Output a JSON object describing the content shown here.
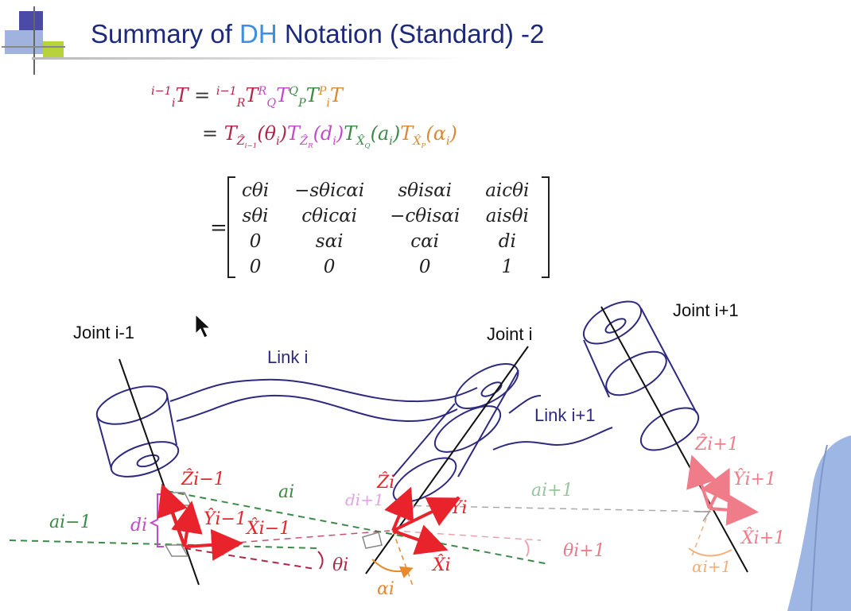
{
  "title": {
    "prefix": "Summary of ",
    "dh": "DH",
    "suffix": " Notation (Standard) -2"
  },
  "colors": {
    "title": "#1d2a7a",
    "dh": "#3f8fe0",
    "red": "#b1274a",
    "magenta": "#c34bc9",
    "green": "#3c8a48",
    "orange": "#d98a34",
    "frame": "#e8232b"
  },
  "equation": {
    "lhs": "i−1iT",
    "line1": "= i−1RT RQT QPT PiT",
    "line2": "= TẐi−1(θi)TẐR(di)TX̂Q(ai)TX̂P(αi)"
  },
  "matrix": {
    "rows": [
      [
        "cθi",
        "−sθicαi",
        "sθisαi",
        "aicθi"
      ],
      [
        "sθi",
        "cθicαi",
        "−cθisαi",
        "aisθi"
      ],
      [
        "0",
        "sαi",
        "cαi",
        "di"
      ],
      [
        "0",
        "0",
        "0",
        "1"
      ]
    ]
  },
  "diagram": {
    "joint_prev": "Joint i-1",
    "joint_i": "Joint i",
    "joint_next": "Joint i+1",
    "link_i": "Link i",
    "link_next": "Link i+1",
    "labels": {
      "z_prev": "Ẑi−1",
      "y_prev": "Ŷi−1",
      "x_prev": "X̂i−1",
      "z_i": "Ẑi",
      "y_i": "Ŷi",
      "x_i": "X̂i",
      "z_next": "Ẑi+1",
      "y_next": "Ŷi+1",
      "x_next": "X̂i+1",
      "a_prev": "ai−1",
      "a_i": "ai",
      "a_next": "ai+1",
      "d_i": "di",
      "d_next": "di+1",
      "theta_i": "θi",
      "theta_next": "θi+1",
      "alpha_i": "αi",
      "alpha_next": "αi+1"
    }
  }
}
